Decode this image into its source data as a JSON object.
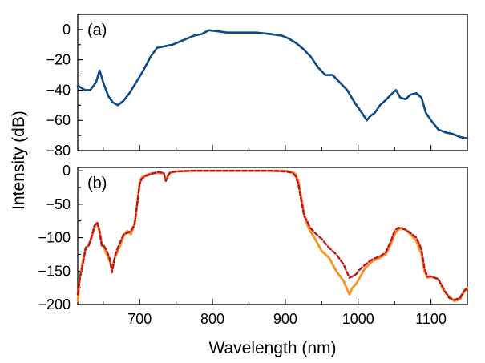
{
  "colors": {
    "panel_a_line": "#0b4a8b",
    "solid_line": "#f7941d",
    "dashed_line": "#c0111f",
    "axes": "#000000"
  },
  "chart_data": [
    {
      "type": "line",
      "panel_label": "(a)",
      "xlabel": "Wavelength (nm)",
      "ylabel": "Intensity (dB)",
      "xlim": [
        615,
        1150
      ],
      "ylim": [
        -80,
        10
      ],
      "yticks": [
        0,
        -20,
        -40,
        -60,
        -80
      ],
      "ytick_labels": [
        "0",
        "−20",
        "−40",
        "−60",
        "−80"
      ],
      "series": [
        {
          "name": "spectrum",
          "x": [
            615,
            625,
            632,
            640,
            645,
            650,
            657,
            663,
            670,
            678,
            686,
            695,
            705,
            715,
            724,
            735,
            745,
            755,
            765,
            775,
            785,
            795,
            805,
            820,
            840,
            860,
            880,
            895,
            905,
            915,
            925,
            935,
            945,
            955,
            965,
            975,
            985,
            995,
            1005,
            1012,
            1017,
            1023,
            1030,
            1037,
            1045,
            1052,
            1058,
            1065,
            1072,
            1080,
            1087,
            1093,
            1100,
            1110,
            1120,
            1130,
            1140,
            1150
          ],
          "y": [
            -37,
            -40,
            -40,
            -35,
            -27,
            -35,
            -44,
            -48,
            -50,
            -47,
            -42,
            -35,
            -27,
            -18,
            -12,
            -11,
            -10,
            -8,
            -6,
            -4,
            -3,
            -0.5,
            -1,
            -2,
            -2,
            -2,
            -3,
            -4,
            -6,
            -9,
            -13,
            -18,
            -25,
            -30,
            -30,
            -35,
            -40,
            -48,
            -55,
            -60,
            -57,
            -55,
            -50,
            -47,
            -43,
            -40,
            -45,
            -46,
            -43,
            -42,
            -45,
            -55,
            -60,
            -66,
            -68,
            -69,
            -71,
            -72
          ]
        }
      ]
    },
    {
      "type": "line",
      "panel_label": "(b)",
      "xlabel": "Wavelength (nm)",
      "ylabel": "Intensity (dB)",
      "xlim": [
        615,
        1150
      ],
      "ylim": [
        -200,
        5
      ],
      "xticks": [
        700,
        800,
        900,
        1000,
        1100
      ],
      "xtick_labels": [
        "700",
        "800",
        "900",
        "1000",
        "1100"
      ],
      "yticks": [
        0,
        -50,
        -100,
        -150,
        -200
      ],
      "ytick_labels": [
        "0",
        "−50",
        "−100",
        "−150",
        "−200"
      ],
      "series": [
        {
          "name": "solid",
          "style": "solid",
          "x": [
            615,
            618,
            622,
            626,
            630,
            634,
            638,
            642,
            645,
            648,
            651,
            655,
            659,
            662,
            666,
            670,
            674,
            678,
            683,
            688,
            693,
            696,
            700,
            703,
            708,
            715,
            725,
            733,
            736,
            739,
            742,
            750,
            770,
            790,
            820,
            850,
            880,
            900,
            910,
            914,
            918,
            922,
            926,
            930,
            934,
            940,
            950,
            960,
            970,
            980,
            988,
            992,
            997,
            1002,
            1010,
            1020,
            1030,
            1038,
            1045,
            1050,
            1055,
            1060,
            1065,
            1072,
            1080,
            1087,
            1091,
            1095,
            1100,
            1110,
            1118,
            1125,
            1132,
            1140,
            1145,
            1150
          ],
          "y": [
            -195,
            -160,
            -135,
            -115,
            -112,
            -100,
            -85,
            -78,
            -90,
            -110,
            -115,
            -125,
            -135,
            -148,
            -130,
            -120,
            -110,
            -97,
            -90,
            -95,
            -80,
            -55,
            -18,
            -10,
            -7,
            -4,
            -3,
            -4,
            -15,
            -8,
            -3,
            -1,
            0,
            0,
            0,
            0,
            0,
            0,
            -2,
            -5,
            -15,
            -40,
            -65,
            -80,
            -90,
            -100,
            -120,
            -130,
            -150,
            -165,
            -185,
            -175,
            -170,
            -160,
            -145,
            -135,
            -130,
            -125,
            -110,
            -95,
            -88,
            -85,
            -88,
            -95,
            -105,
            -125,
            -150,
            -160,
            -158,
            -162,
            -180,
            -188,
            -195,
            -192,
            -182,
            -175
          ]
        },
        {
          "name": "dashed",
          "style": "dashed",
          "x": [
            615,
            618,
            622,
            626,
            630,
            634,
            638,
            642,
            645,
            648,
            651,
            655,
            659,
            662,
            666,
            670,
            674,
            678,
            683,
            688,
            693,
            696,
            700,
            703,
            708,
            715,
            725,
            733,
            736,
            739,
            742,
            750,
            770,
            790,
            820,
            850,
            880,
            900,
            910,
            914,
            918,
            922,
            926,
            930,
            934,
            940,
            950,
            960,
            970,
            980,
            988,
            992,
            997,
            1002,
            1010,
            1020,
            1030,
            1038,
            1045,
            1050,
            1055,
            1060,
            1065,
            1072,
            1080,
            1087,
            1091,
            1095,
            1100,
            1110,
            1118,
            1125,
            1132,
            1140,
            1145,
            1150
          ],
          "y": [
            -185,
            -160,
            -140,
            -115,
            -112,
            -98,
            -82,
            -77,
            -92,
            -112,
            -112,
            -120,
            -132,
            -152,
            -128,
            -115,
            -105,
            -95,
            -93,
            -90,
            -80,
            -55,
            -20,
            -12,
            -8,
            -5,
            -2,
            -3,
            -15,
            -7,
            -2,
            -1,
            0,
            0,
            0,
            0,
            0,
            -1,
            -3,
            -8,
            -20,
            -45,
            -68,
            -75,
            -85,
            -92,
            -102,
            -115,
            -125,
            -140,
            -160,
            -158,
            -155,
            -148,
            -140,
            -132,
            -128,
            -122,
            -105,
            -90,
            -85,
            -86,
            -88,
            -93,
            -100,
            -118,
            -145,
            -158,
            -158,
            -162,
            -178,
            -190,
            -193,
            -190,
            -180,
            -175
          ]
        }
      ]
    }
  ]
}
